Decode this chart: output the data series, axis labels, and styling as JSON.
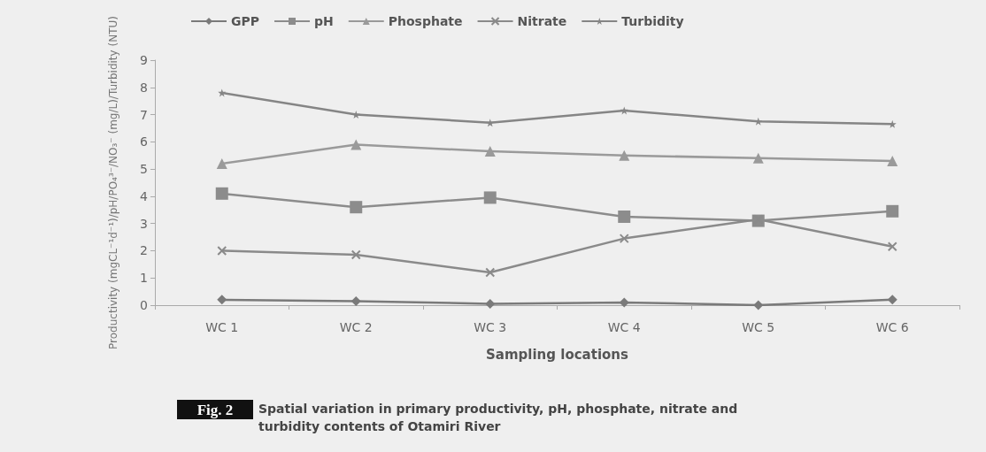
{
  "chart_data": {
    "type": "line",
    "xlabel": "Sampling locations",
    "ylabel": "Productivity (mgCL⁻¹d⁻¹)/pH/PO₄³⁻/NO₃⁻ (mg/L)/Turbidity (NTU)",
    "categories": [
      "WC 1",
      "WC 2",
      "WC 3",
      "WC 4",
      "WC 5",
      "WC 6"
    ],
    "series": [
      {
        "name": "GPP",
        "color": "#7a7a7a",
        "marker": "diamond",
        "values": [
          0.2,
          0.15,
          0.05,
          0.1,
          0,
          0.2
        ]
      },
      {
        "name": "pH",
        "color": "#8c8c8c",
        "marker": "square",
        "values": [
          4.1,
          3.6,
          3.95,
          3.25,
          3.1,
          3.45
        ]
      },
      {
        "name": "Phosphate",
        "color": "#9a9a9a",
        "marker": "triangle",
        "values": [
          5.2,
          5.9,
          5.65,
          5.5,
          5.4,
          5.3
        ]
      },
      {
        "name": "Nitrate",
        "color": "#8a8a8a",
        "marker": "cross",
        "values": [
          2.0,
          1.85,
          1.2,
          2.45,
          3.15,
          2.15
        ]
      },
      {
        "name": "Turbidity",
        "color": "#858585",
        "marker": "star",
        "values": [
          7.8,
          7.0,
          6.7,
          7.15,
          6.75,
          6.65
        ]
      }
    ],
    "ylim": [
      0,
      9
    ],
    "yticks": [
      0,
      1,
      2,
      3,
      4,
      5,
      6,
      7,
      8,
      9
    ],
    "grid": false,
    "legend": "top",
    "annotations": [
      "Fig. 2",
      "Spatial variation in primary productivity, pH, phosphate, nitrate and turbidity contents of Otamiri River"
    ]
  }
}
